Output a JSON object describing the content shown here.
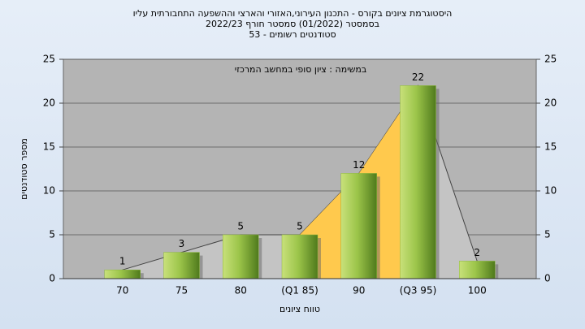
{
  "chart_data": {
    "type": "bar",
    "title_lines": [
      "היסטוגרמת ציונים בקורס - התכנון העירוני,האזורי והארצי וההשפעה התחבורתית עליו",
      "בסמסטר  (01/2022)  סמסטר חורף 2022/23",
      "סטודנטים רשומים - 53"
    ],
    "annotation": "במשימה : ציון סופי במחשב המרכזי",
    "x_label": "טווח ציונים",
    "y_label": "מספר סטודנטים",
    "categories": [
      "70",
      "75",
      "80",
      "(Q1 85)",
      "90",
      "(Q3 95)",
      "100"
    ],
    "values": [
      1,
      3,
      5,
      5,
      12,
      22,
      2
    ],
    "color": "#8db83c",
    "ylim": [
      0,
      25
    ],
    "yticks": [
      0,
      5,
      10,
      15,
      20,
      25
    ],
    "y2lim": [
      0,
      25
    ],
    "y2ticks": [
      0,
      5,
      10,
      15,
      20,
      25
    ],
    "grid": true
  }
}
